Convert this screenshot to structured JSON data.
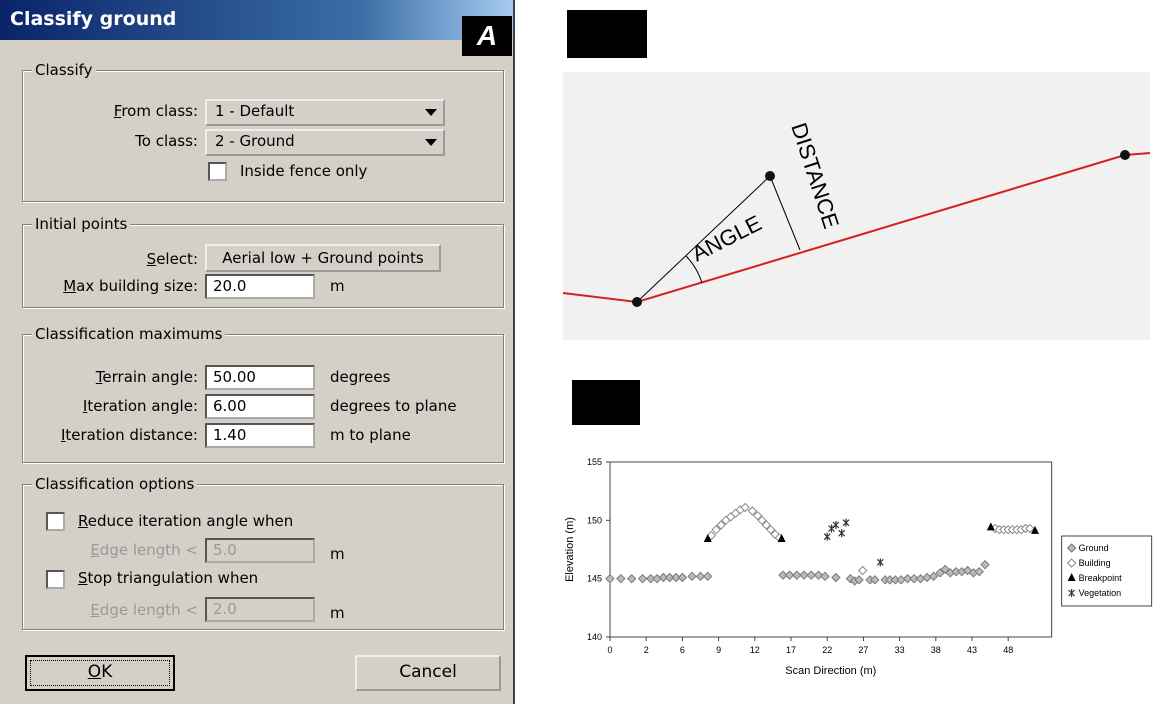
{
  "dialog": {
    "title": "Classify ground",
    "badge": "A",
    "classify": {
      "legend": "Classify",
      "from_label": "From class:",
      "from_value": "1 - Default",
      "to_label": "To class:",
      "to_value": "2 - Ground",
      "fence": "Inside fence only"
    },
    "initial": {
      "legend": "Initial points",
      "select_label": "Select:",
      "select_value": "Aerial low + Ground points",
      "max_label": "Max building size:",
      "max_value": "20.0",
      "max_unit": "m"
    },
    "maximums": {
      "legend": "Classification maximums",
      "rows": [
        [
          "Terrain angle:",
          "50.00",
          "degrees"
        ],
        [
          "Iteration angle:",
          "6.00",
          "degrees to plane"
        ],
        [
          "Iteration distance:",
          "1.40",
          "m to plane"
        ]
      ]
    },
    "options": {
      "legend": "Classification options",
      "reduce": "Reduce iteration angle when",
      "edge1_label": "Edge length <",
      "edge1_value": "5.0",
      "edge1_unit": "m",
      "stop": "Stop triangulation when",
      "edge2_label": "Edge length <",
      "edge2_value": "2.0",
      "edge2_unit": "m"
    },
    "ok": "OK",
    "cancel": "Cancel"
  },
  "diagram": {
    "angle": "ANGLE",
    "distance": "DISTANCE"
  },
  "chart_data": {
    "type": "scatter",
    "x_label": "Scan Direction (m)",
    "y_label": "Elevation (m)",
    "xlim": [
      0,
      54
    ],
    "xticks": [
      0,
      2,
      6,
      9,
      12,
      17,
      22,
      27,
      33,
      38,
      43,
      48
    ],
    "ylim": [
      140,
      155
    ],
    "yticks": [
      140,
      145,
      150,
      155
    ],
    "legend": "right",
    "series": [
      {
        "name": "Ground",
        "color": "#777777",
        "marker": "diamond-filled",
        "x": [
          0,
          0.6,
          1.2,
          1.8,
          2.5,
          3.2,
          3.9,
          4.6,
          5.3,
          6.0,
          6.8,
          7.5,
          8.1,
          15.9,
          16.8,
          17.8,
          18.8,
          19.8,
          20.8,
          21.7,
          23.2,
          25.2,
          25.8,
          26.4,
          28.1,
          28.9,
          30.6,
          31.4,
          32.3,
          33.2,
          34.1,
          35.0,
          35.9,
          36.8,
          37.7,
          38.6,
          39.3,
          40.0,
          40.8,
          41.6,
          42.4,
          43.2,
          44.0,
          44.8
        ],
        "values": [
          145.0,
          145.0,
          145.0,
          145.0,
          145.0,
          145.0,
          145.1,
          145.1,
          145.1,
          145.1,
          145.2,
          145.2,
          145.2,
          145.3,
          145.3,
          145.3,
          145.3,
          145.3,
          145.3,
          145.2,
          145.1,
          145.0,
          144.8,
          144.9,
          144.9,
          144.9,
          144.9,
          144.9,
          144.9,
          144.9,
          145.0,
          145.0,
          145.0,
          145.1,
          145.2,
          145.5,
          145.8,
          145.5,
          145.6,
          145.6,
          145.7,
          145.5,
          145.6,
          146.2
        ]
      },
      {
        "name": "Building",
        "color": "#888888",
        "marker": "diamond-open",
        "x": [
          8.4,
          8.8,
          9.2,
          9.6,
          10.0,
          10.4,
          10.8,
          11.2,
          11.8,
          12.4,
          13.0,
          13.6,
          14.2,
          14.8,
          15.4,
          26.9,
          46.2,
          46.8,
          47.4,
          48.0,
          48.6,
          49.2,
          49.8,
          50.4,
          51.0
        ],
        "values": [
          148.7,
          149.2,
          149.6,
          150.0,
          150.3,
          150.6,
          150.9,
          151.1,
          150.8,
          150.4,
          150.0,
          149.6,
          149.2,
          148.8,
          148.5,
          145.7,
          149.3,
          149.2,
          149.2,
          149.2,
          149.2,
          149.2,
          149.2,
          149.3,
          149.3
        ]
      },
      {
        "name": "Breakpoint",
        "color": "#000000",
        "marker": "triangle",
        "x": [
          8.1,
          15.7,
          45.6,
          51.7
        ],
        "values": [
          148.4,
          148.4,
          149.4,
          149.1
        ]
      },
      {
        "name": "Vegetation",
        "color": "#333333",
        "marker": "cross",
        "x": [
          22.0,
          22.6,
          23.2,
          24.0,
          24.6,
          29.8
        ],
        "values": [
          148.6,
          149.3,
          149.6,
          148.9,
          149.8,
          146.4
        ]
      }
    ]
  }
}
